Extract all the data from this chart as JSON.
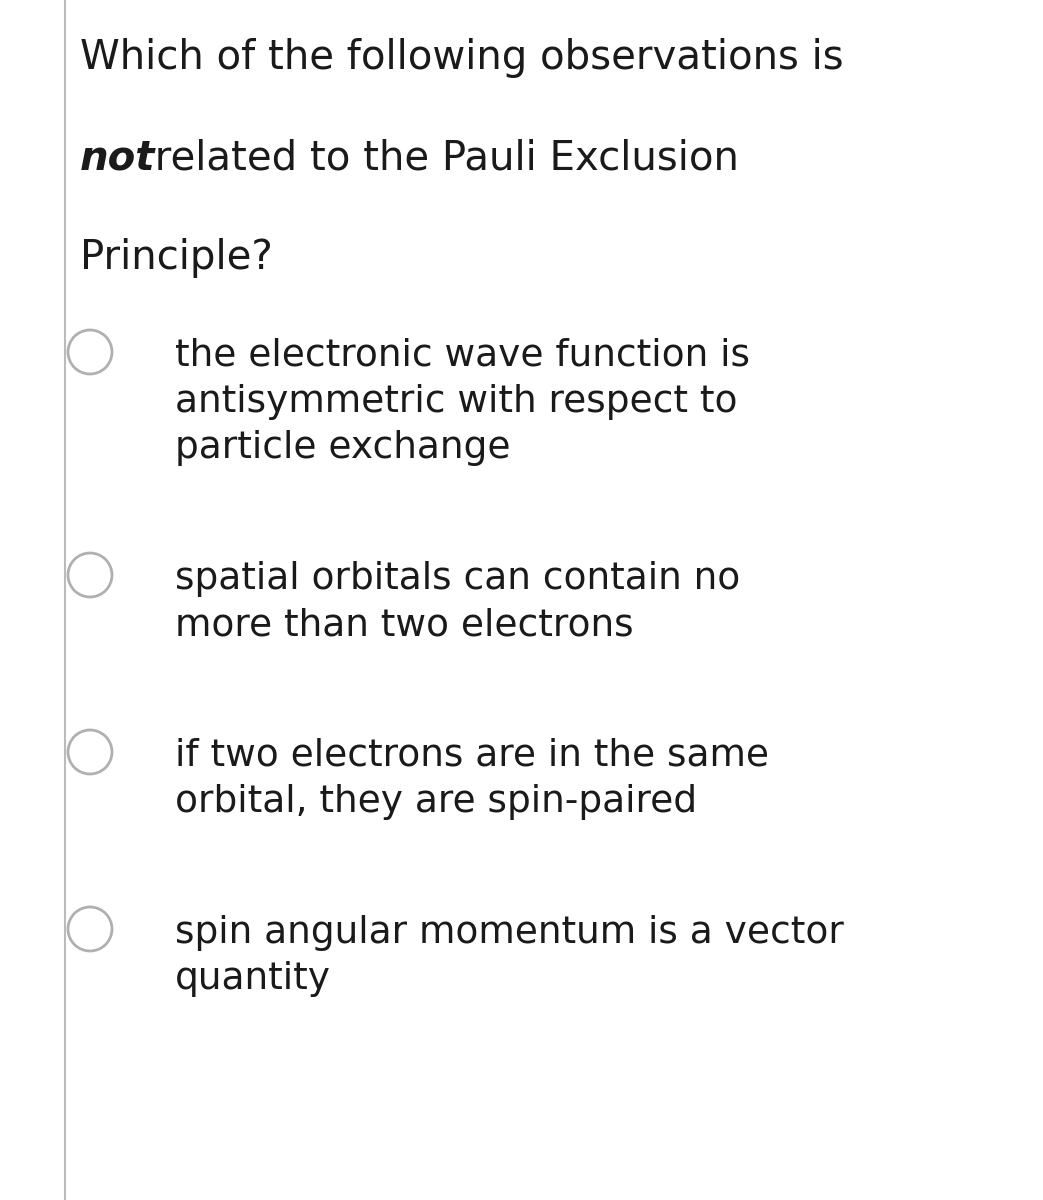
{
  "background_color": "#ffffff",
  "left_border_color": "#bbbbbb",
  "question_line1": "Which of the following observations is",
  "question_line2_bold": "not",
  "question_line2_normal": " related to the Pauli Exclusion",
  "question_line3": "Principle?",
  "options": [
    {
      "lines": [
        "the electronic wave function is",
        "antisymmetric with respect to",
        "particle exchange"
      ]
    },
    {
      "lines": [
        "spatial orbitals can contain no",
        "more than two electrons"
      ]
    },
    {
      "lines": [
        "if two electrons are in the same",
        "orbital, they are spin-paired"
      ]
    },
    {
      "lines": [
        "spin angular momentum is a vector",
        "quantity"
      ]
    }
  ],
  "text_color": "#1a1a1a",
  "circle_edge_color": "#b0b0b0",
  "circle_face_color": "#ffffff",
  "fig_width": 10.43,
  "fig_height": 12.0,
  "dpi": 100
}
